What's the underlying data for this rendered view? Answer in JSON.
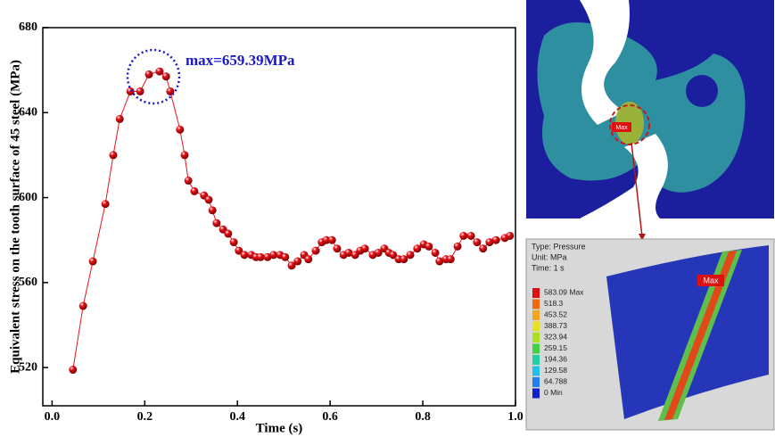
{
  "chart_data": {
    "type": "line",
    "xlabel": "Time (s)",
    "ylabel": "Equivalent stress on the tooth surface of 45 steel (MPa)",
    "annotation": "max=659.39MPa",
    "xlim": [
      -0.02,
      1.0
    ],
    "ylim": [
      502,
      680
    ],
    "xticks": [
      {
        "value": 0,
        "label": "0.0"
      },
      0.2,
      0.4,
      0.6,
      0.8,
      {
        "value": 1,
        "label": "1.0"
      }
    ],
    "yticks": [
      520,
      560,
      600,
      640,
      680
    ],
    "series": [
      {
        "color": "#e8141a",
        "x": [
          0.045,
          0.067,
          0.088,
          0.115,
          0.132,
          0.146,
          0.169,
          0.19,
          0.209,
          0.232,
          0.246,
          0.255,
          0.276,
          0.286,
          0.294,
          0.307,
          0.328,
          0.338,
          0.346,
          0.355,
          0.369,
          0.38,
          0.392,
          0.403,
          0.415,
          0.43,
          0.44,
          0.45,
          0.465,
          0.478,
          0.492,
          0.503,
          0.517,
          0.53,
          0.544,
          0.553,
          0.569,
          0.582,
          0.592,
          0.604,
          0.615,
          0.629,
          0.64,
          0.654,
          0.665,
          0.675,
          0.692,
          0.704,
          0.717,
          0.727,
          0.736,
          0.748,
          0.759,
          0.773,
          0.788,
          0.802,
          0.813,
          0.827,
          0.836,
          0.85,
          0.86,
          0.875,
          0.888,
          0.904,
          0.917,
          0.93,
          0.944,
          0.958,
          0.977,
          0.988
        ],
        "values": [
          519,
          549,
          570,
          597,
          620,
          637,
          650,
          650,
          658,
          659.39,
          657,
          650,
          632,
          620,
          608,
          603,
          601,
          599,
          594,
          588,
          585,
          583,
          579,
          575,
          573,
          573,
          572,
          572,
          572,
          573,
          573,
          572,
          568,
          570,
          573,
          571,
          575,
          579,
          580,
          580,
          576,
          573,
          574,
          573,
          575,
          576,
          573,
          574,
          576,
          574,
          573,
          571,
          571,
          573,
          576,
          578,
          577,
          574,
          570,
          571,
          571,
          577,
          582,
          582,
          579,
          576,
          579,
          580,
          581,
          582
        ]
      }
    ]
  },
  "insets": {
    "top_tag": "Max",
    "bottom": {
      "type": "Type: Pressure",
      "unit": "Unit: MPa",
      "time": "Time: 1 s",
      "tag": "Max",
      "legend": [
        "583.09 Max",
        "518.3",
        "453.52",
        "388.73",
        "323.94",
        "259.15",
        "194.36",
        "129.58",
        "64.788",
        "0 Min"
      ]
    }
  }
}
